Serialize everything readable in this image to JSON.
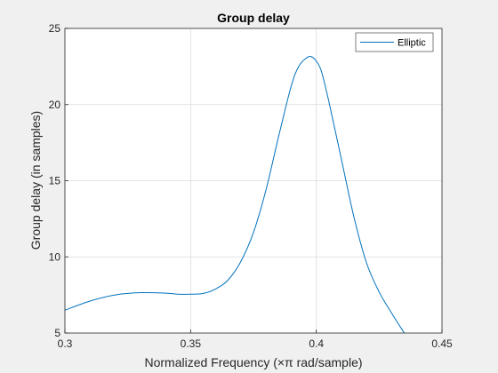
{
  "chart_data": {
    "type": "line",
    "title": "Group delay",
    "xlabel": "Normalized Frequency (×π rad/sample)",
    "ylabel": "Group delay (in samples)",
    "xlim": [
      0.3,
      0.45
    ],
    "ylim": [
      5,
      25
    ],
    "xticks": [
      0.3,
      0.35,
      0.4,
      0.45
    ],
    "xtick_labels": [
      "0.3",
      "0.35",
      "0.4",
      "0.45"
    ],
    "yticks": [
      5,
      10,
      15,
      20,
      25
    ],
    "ytick_labels": [
      "5",
      "10",
      "15",
      "20",
      "25"
    ],
    "grid": true,
    "legend_position": "top-right",
    "series": [
      {
        "name": "Elliptic",
        "color": "#0072bd",
        "x": [
          0.3,
          0.31,
          0.32,
          0.33,
          0.34,
          0.345,
          0.35,
          0.355,
          0.36,
          0.365,
          0.37,
          0.375,
          0.38,
          0.385,
          0.39,
          0.393,
          0.396,
          0.398,
          0.4,
          0.402,
          0.405,
          0.41,
          0.415,
          0.42,
          0.425,
          0.43,
          0.435
        ],
        "y": [
          6.5,
          7.1,
          7.5,
          7.65,
          7.62,
          7.55,
          7.55,
          7.6,
          7.9,
          8.5,
          9.7,
          11.6,
          14.4,
          17.9,
          21.2,
          22.5,
          23.05,
          23.15,
          22.85,
          22.2,
          20.2,
          16.4,
          12.6,
          9.6,
          7.7,
          6.3,
          5.0
        ]
      }
    ]
  }
}
